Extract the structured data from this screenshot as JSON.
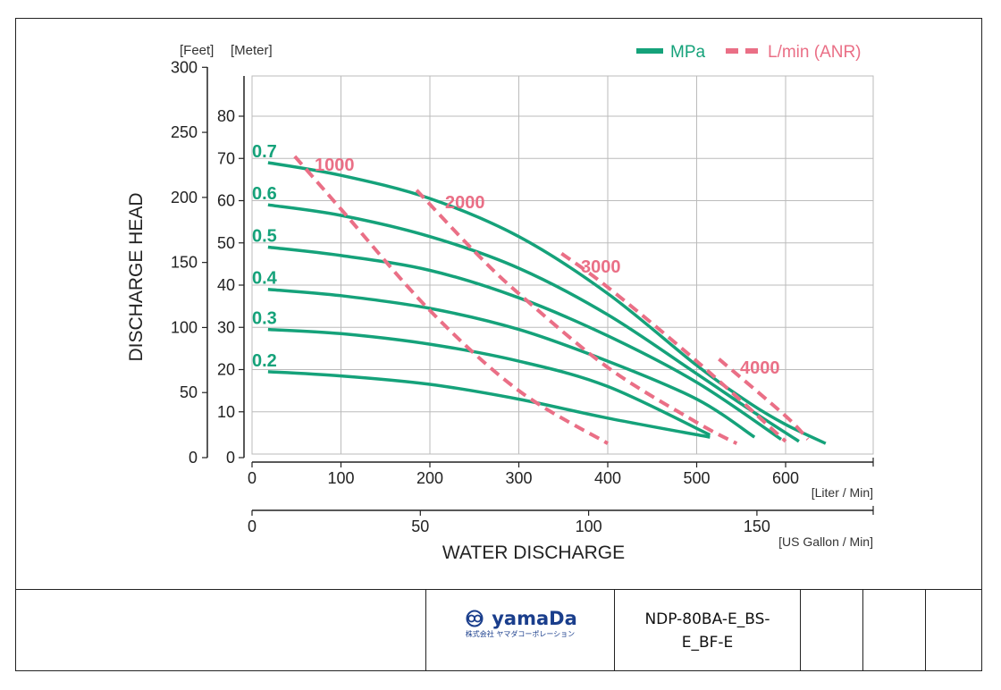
{
  "chart_data": {
    "type": "line",
    "xlabel": "WATER DISCHARGE",
    "x_unit_primary": "[Liter / Min]",
    "x_unit_secondary": "[US Gallon / Min]",
    "ylabel": "DISCHARGE HEAD",
    "y_unit_feet": "[Feet]",
    "y_unit_meter": "[Meter]",
    "xlim": [
      0,
      700
    ],
    "ylim_meter": [
      0,
      90
    ],
    "ylim_feet": [
      0,
      300
    ],
    "x_ticks": [
      "0",
      "100",
      "200",
      "300",
      "400",
      "500",
      "600"
    ],
    "x_ticks_gallon": [
      "0",
      "50",
      "100",
      "150"
    ],
    "y_ticks_meter": [
      "0",
      "10",
      "20",
      "30",
      "40",
      "50",
      "60",
      "70",
      "80"
    ],
    "y_ticks_feet": [
      "0",
      "50",
      "100",
      "150",
      "200",
      "250",
      "300"
    ],
    "grid": true,
    "legend": {
      "placement": "top-right",
      "items": [
        {
          "label": "MPa",
          "style": "solid",
          "color": "#15a27a"
        },
        {
          "label": "L/min (ANR)",
          "style": "dashed",
          "color": "#ea6f86"
        }
      ]
    },
    "series": [
      {
        "name": "0.7",
        "kind": "pressure",
        "x": [
          18,
          100,
          200,
          300,
          400,
          500,
          560,
          600,
          645
        ],
        "y": [
          69,
          66,
          60.5,
          51.5,
          38,
          21,
          12,
          7,
          2.5
        ]
      },
      {
        "name": "0.6",
        "kind": "pressure",
        "x": [
          18,
          100,
          200,
          300,
          400,
          500,
          560,
          615
        ],
        "y": [
          59,
          56.5,
          51.5,
          44,
          33,
          19,
          10.5,
          3
        ]
      },
      {
        "name": "0.5",
        "kind": "pressure",
        "x": [
          18,
          100,
          200,
          300,
          400,
          500,
          595
        ],
        "y": [
          49,
          47,
          43.5,
          37,
          28,
          17,
          3.5
        ]
      },
      {
        "name": "0.4",
        "kind": "pressure",
        "x": [
          18,
          100,
          200,
          300,
          400,
          500,
          565
        ],
        "y": [
          39,
          37.5,
          34.5,
          29.5,
          22,
          13,
          4
        ]
      },
      {
        "name": "0.3",
        "kind": "pressure",
        "x": [
          18,
          100,
          200,
          300,
          400,
          515
        ],
        "y": [
          29.5,
          28.5,
          26,
          22,
          16,
          4.5
        ]
      },
      {
        "name": "0.2",
        "kind": "pressure",
        "x": [
          18,
          100,
          200,
          300,
          400,
          515
        ],
        "y": [
          19.5,
          18.5,
          16.5,
          13,
          8.5,
          4
        ]
      },
      {
        "name": "1000",
        "kind": "air",
        "x": [
          48,
          100,
          200,
          300,
          400
        ],
        "y": [
          70.5,
          58,
          34,
          15,
          2.5
        ]
      },
      {
        "name": "2000",
        "kind": "air",
        "x": [
          185,
          250,
          300,
          400,
          500,
          545
        ],
        "y": [
          62.5,
          48,
          38,
          20.5,
          7.5,
          2.5
        ]
      },
      {
        "name": "3000",
        "kind": "air",
        "x": [
          348,
          400,
          500,
          600
        ],
        "y": [
          47.5,
          39.5,
          22,
          3
        ]
      },
      {
        "name": "4000",
        "kind": "air",
        "x": [
          525,
          600,
          625
        ],
        "y": [
          22.5,
          9,
          3.5
        ]
      }
    ]
  },
  "footer": {
    "brand_name": "yamaDa",
    "brand_sub": "株式会社 ヤマダコーポレーション",
    "model": "NDP-80BA-E_BS-E_BF-E"
  }
}
